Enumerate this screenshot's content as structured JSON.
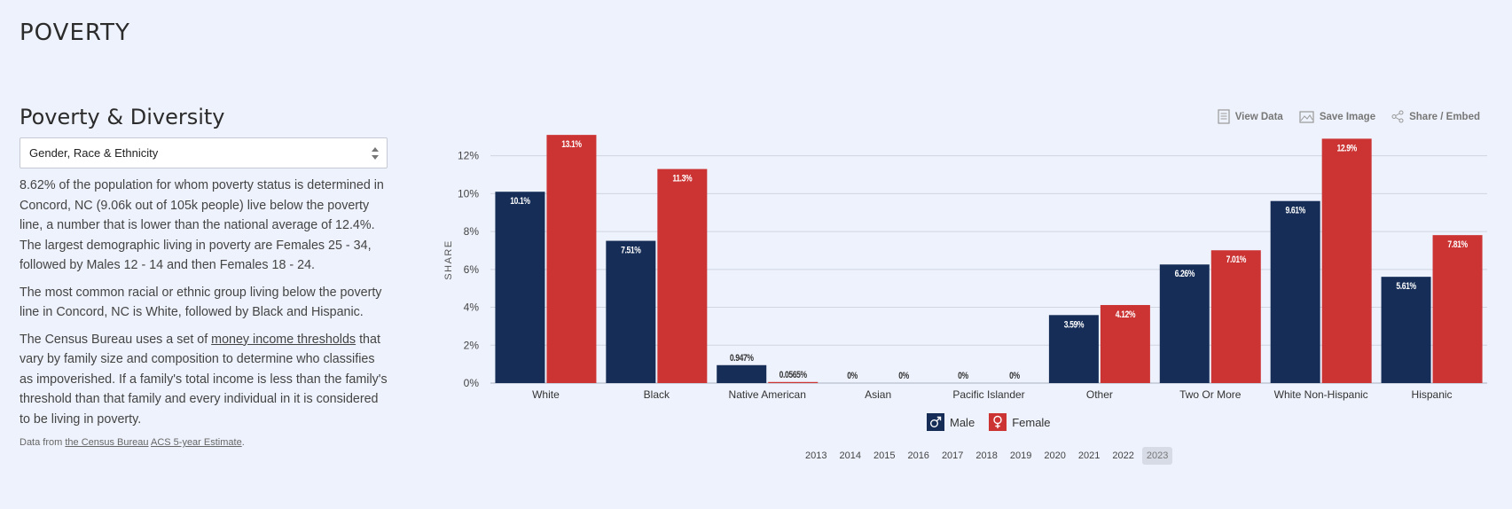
{
  "page": {
    "section_title": "POVERTY"
  },
  "left": {
    "title": "Poverty & Diversity",
    "select_value": "Gender, Race & Ethnicity",
    "para1": "8.62% of the population for whom poverty status is determined in Concord, NC (9.06k out of 105k people) live below the poverty line, a number that is lower than the national average of 12.4%. The largest demographic living in poverty are Females 25 - 34, followed by Males 12 - 14 and then Females 18 - 24.",
    "para2": "The most common racial or ethnic group living below the poverty line in Concord, NC is White, followed by Black and Hispanic.",
    "para3_pre": "The Census Bureau uses a set of ",
    "para3_link": "money income thresholds",
    "para3_post": " that vary by family size and composition to determine who classifies as impoverished. If a family's total income is less than the family's threshold than that family and every individual in it is considered to be living in poverty.",
    "source_pre": "Data from ",
    "source_link1": "the Census Bureau",
    "source_link2": "ACS 5-year Estimate",
    "source_post": "."
  },
  "toolbar": {
    "view_data": "View Data",
    "save_image": "Save Image",
    "share": "Share / Embed"
  },
  "colors": {
    "male": "#162e57",
    "female": "#cc3333",
    "background": "#eef2fc"
  },
  "icons": {
    "male": "male-icon",
    "female": "female-icon"
  },
  "chart_data": {
    "type": "bar",
    "ylabel": "SHARE",
    "xlabel": "",
    "ylim": [
      0,
      13.2
    ],
    "yticks": [
      0,
      2,
      4,
      6,
      8,
      10,
      12
    ],
    "ytick_labels": [
      "0%",
      "2%",
      "4%",
      "6%",
      "8%",
      "10%",
      "12%"
    ],
    "categories": [
      "White",
      "Black",
      "Native American",
      "Asian",
      "Pacific Islander",
      "Other",
      "Two Or More",
      "White Non-Hispanic",
      "Hispanic"
    ],
    "series": [
      {
        "name": "Male",
        "color": "#162e57",
        "values": [
          10.1,
          7.51,
          0.947,
          0,
          0,
          3.59,
          6.26,
          9.61,
          5.61
        ],
        "labels": [
          "10.1%",
          "7.51%",
          "0.947%",
          "0%",
          "0%",
          "3.59%",
          "6.26%",
          "9.61%",
          "5.61%"
        ]
      },
      {
        "name": "Female",
        "color": "#cc3333",
        "values": [
          13.1,
          11.3,
          0.0565,
          0,
          0,
          4.12,
          7.01,
          12.9,
          7.81
        ],
        "labels": [
          "13.1%",
          "11.3%",
          "0.0565%",
          "0%",
          "0%",
          "4.12%",
          "7.01%",
          "12.9%",
          "7.81%"
        ]
      }
    ],
    "grid": true,
    "legend": "bottom"
  },
  "years": {
    "items": [
      "2013",
      "2014",
      "2015",
      "2016",
      "2017",
      "2018",
      "2019",
      "2020",
      "2021",
      "2022",
      "2023"
    ],
    "selected": "2023"
  }
}
